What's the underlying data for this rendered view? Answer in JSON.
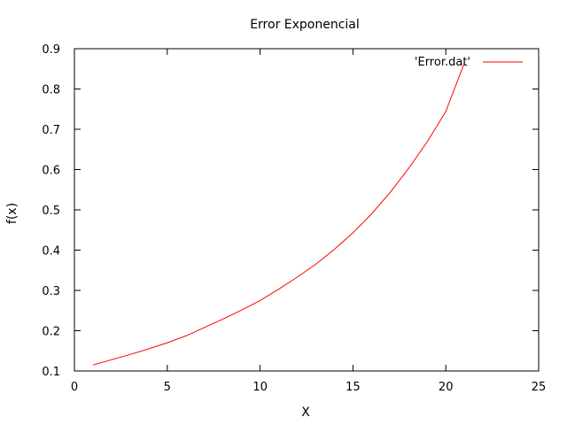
{
  "chart_data": {
    "type": "line",
    "title": "Error Exponencial",
    "xlabel": "X",
    "ylabel": "f(x)",
    "xlim": [
      0,
      25
    ],
    "ylim": [
      0.1,
      0.9
    ],
    "xticks": [
      0,
      5,
      10,
      15,
      20,
      25
    ],
    "yticks": [
      0.1,
      0.2,
      0.3,
      0.4,
      0.5,
      0.6,
      0.7,
      0.8,
      0.9
    ],
    "xtick_labels": [
      "0",
      "5",
      "10",
      "15",
      "20",
      "25"
    ],
    "ytick_labels": [
      "0.1",
      "0.2",
      "0.3",
      "0.4",
      "0.5",
      "0.6",
      "0.7",
      "0.8",
      "0.9"
    ],
    "grid": false,
    "legend_position": "top-right",
    "series": [
      {
        "name": "'Error.dat'",
        "color": "#ff0000",
        "x": [
          1,
          2,
          3,
          4,
          5,
          6,
          7,
          8,
          9,
          10,
          11,
          12,
          13,
          14,
          15,
          16,
          17,
          18,
          19,
          20,
          21
        ],
        "y": [
          0.115,
          0.128,
          0.141,
          0.155,
          0.17,
          0.187,
          0.208,
          0.229,
          0.251,
          0.275,
          0.303,
          0.333,
          0.365,
          0.402,
          0.443,
          0.49,
          0.543,
          0.603,
          0.669,
          0.744,
          0.865
        ]
      }
    ]
  }
}
